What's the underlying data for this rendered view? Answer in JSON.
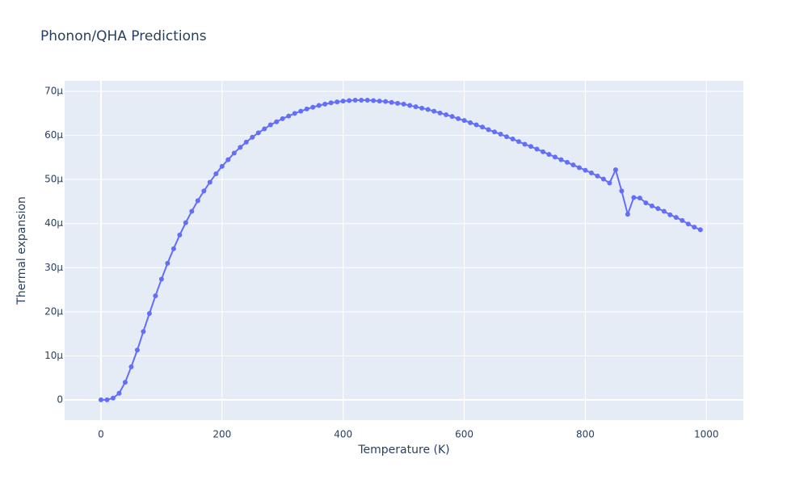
{
  "chart_data": {
    "type": "line",
    "title": "Phonon/QHA Predictions",
    "x_label": "Temperature (K)",
    "y_label": "Thermal expansion",
    "color": "#636efa",
    "markers": true,
    "grid": true,
    "xlim": [
      -60,
      1061
    ],
    "xticks": [
      0,
      200,
      400,
      600,
      800,
      1000
    ],
    "ylim": [
      -4.6e-06,
      7.24e-05
    ],
    "yticks": [
      0,
      {
        "value": 1e-05,
        "label": "10µ"
      },
      {
        "value": 2e-05,
        "label": "20µ"
      },
      {
        "value": 3e-05,
        "label": "30µ"
      },
      {
        "value": 4e-05,
        "label": "40µ"
      },
      {
        "value": 5e-05,
        "label": "50µ"
      },
      {
        "value": 6e-05,
        "label": "60µ"
      },
      {
        "value": 7e-05,
        "label": "70µ"
      }
    ],
    "x": [
      0,
      10,
      20,
      30,
      40,
      50,
      60,
      70,
      80,
      90,
      100,
      110,
      120,
      130,
      140,
      150,
      160,
      170,
      180,
      190,
      200,
      210,
      220,
      230,
      240,
      250,
      260,
      270,
      280,
      290,
      300,
      310,
      320,
      330,
      340,
      350,
      360,
      370,
      380,
      390,
      400,
      410,
      420,
      430,
      440,
      450,
      460,
      470,
      480,
      490,
      500,
      510,
      520,
      530,
      540,
      550,
      560,
      570,
      580,
      590,
      600,
      610,
      620,
      630,
      640,
      650,
      660,
      670,
      680,
      690,
      700,
      710,
      720,
      730,
      740,
      750,
      760,
      770,
      780,
      790,
      800,
      810,
      820,
      830,
      840,
      850,
      860,
      870,
      880,
      890,
      900,
      910,
      920,
      930,
      940,
      950,
      960,
      970,
      980,
      990
    ],
    "values": [
      0.0,
      0.0,
      4e-07,
      1.5e-06,
      4e-06,
      7.5e-06,
      1.13e-05,
      1.55e-05,
      1.96e-05,
      2.36e-05,
      2.74e-05,
      3.1e-05,
      3.43e-05,
      3.74e-05,
      4.02e-05,
      4.28e-05,
      4.52e-05,
      4.74e-05,
      4.94e-05,
      5.13e-05,
      5.3e-05,
      5.45e-05,
      5.6e-05,
      5.73e-05,
      5.85e-05,
      5.96e-05,
      6.06e-05,
      6.15e-05,
      6.24e-05,
      6.31e-05,
      6.38e-05,
      6.44e-05,
      6.5e-05,
      6.55e-05,
      6.6e-05,
      6.64e-05,
      6.68e-05,
      6.71e-05,
      6.74e-05,
      6.76e-05,
      6.78e-05,
      6.79e-05,
      6.8e-05,
      6.8e-05,
      6.8e-05,
      6.79e-05,
      6.78e-05,
      6.77e-05,
      6.75e-05,
      6.73e-05,
      6.71e-05,
      6.68e-05,
      6.65e-05,
      6.62e-05,
      6.59e-05,
      6.55e-05,
      6.51e-05,
      6.47e-05,
      6.43e-05,
      6.38e-05,
      6.34e-05,
      6.29e-05,
      6.24e-05,
      6.19e-05,
      6.13e-05,
      6.08e-05,
      6.03e-05,
      5.97e-05,
      5.92e-05,
      5.86e-05,
      5.8e-05,
      5.75e-05,
      5.69e-05,
      5.63e-05,
      5.57e-05,
      5.51e-05,
      5.45e-05,
      5.39e-05,
      5.33e-05,
      5.27e-05,
      5.21e-05,
      5.15e-05,
      5.08e-05,
      5.01e-05,
      4.92e-05,
      5.22e-05,
      4.74e-05,
      4.21e-05,
      4.59e-05,
      4.58e-05,
      4.47e-05,
      4.4e-05,
      4.34e-05,
      4.28e-05,
      4.2e-05,
      4.14e-05,
      4.07e-05,
      3.99e-05,
      3.92e-05,
      3.86e-05
    ]
  }
}
